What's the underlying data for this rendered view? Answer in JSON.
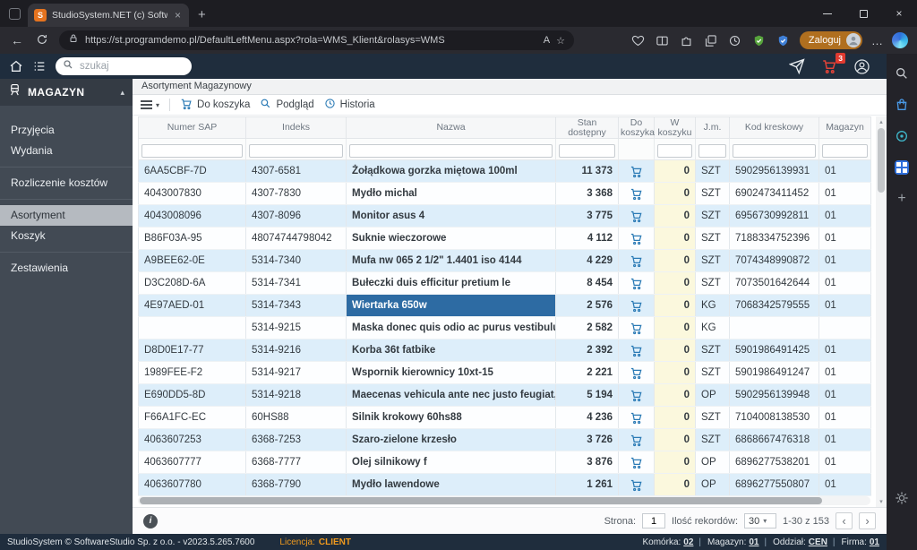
{
  "browser": {
    "tab_title": "StudioSystem.NET (c) SoftwareSt...",
    "favicon_letter": "S",
    "url": "https://st.programdemo.pl/DefaultLeftMenu.aspx?rola=WMS_Klient&rolasys=WMS",
    "login_label": "Zaloguj"
  },
  "topbar": {
    "search_placeholder": "szukaj",
    "cart_badge": "3"
  },
  "sidebar": {
    "title": "MAGAZYN",
    "items": [
      {
        "label": "Przyjęcia"
      },
      {
        "label": "Wydania"
      },
      {
        "label": "Rozliczenie kosztów"
      },
      {
        "label": "Asortyment"
      },
      {
        "label": "Koszyk"
      },
      {
        "label": "Zestawienia"
      }
    ]
  },
  "main": {
    "page_title": "Asortyment Magazynowy",
    "toolbar": {
      "do_koszyka_label": "Do koszyka",
      "podglad_label": "Podgląd",
      "historia_label": "Historia"
    },
    "table": {
      "columns": [
        "Numer SAP",
        "Indeks",
        "Nazwa",
        "Stan dostępny",
        "Do koszyka",
        "W koszyku",
        "J.m.",
        "Kod kreskowy",
        "Magazyn"
      ],
      "rows": [
        {
          "sap": "6AA5CBF-7D",
          "indeks": "4307-6581",
          "nazwa": "Żołądkowa gorzka miętowa 100ml",
          "stan": "11 373",
          "w_koszyku": "0",
          "jm": "SZT",
          "ean": "5902956139931",
          "magazyn": "01",
          "selected": false
        },
        {
          "sap": "4043007830",
          "indeks": "4307-7830",
          "nazwa": "Mydło michal",
          "stan": "3 368",
          "w_koszyku": "0",
          "jm": "SZT",
          "ean": "6902473411452",
          "magazyn": "01",
          "selected": false
        },
        {
          "sap": "4043008096",
          "indeks": "4307-8096",
          "nazwa": "Monitor asus 4",
          "stan": "3 775",
          "w_koszyku": "0",
          "jm": "SZT",
          "ean": "6956730992811",
          "magazyn": "01",
          "selected": false
        },
        {
          "sap": "B86F03A-95",
          "indeks": "48074744798042",
          "nazwa": "Suknie wieczorowe",
          "stan": "4 112",
          "w_koszyku": "0",
          "jm": "SZT",
          "ean": "7188334752396",
          "magazyn": "01",
          "selected": false
        },
        {
          "sap": "A9BEE62-0E",
          "indeks": "5314-7340",
          "nazwa": "Mufa nw 065 2 1/2\" 1.4401 iso 4144",
          "stan": "4 229",
          "w_koszyku": "0",
          "jm": "SZT",
          "ean": "7074348990872",
          "magazyn": "01",
          "selected": false
        },
        {
          "sap": "D3C208D-6A",
          "indeks": "5314-7341",
          "nazwa": "Bułeczki duis efficitur pretium le",
          "stan": "8 454",
          "w_koszyku": "0",
          "jm": "SZT",
          "ean": "7073501642644",
          "magazyn": "01",
          "selected": false
        },
        {
          "sap": "4E97AED-01",
          "indeks": "5314-7343",
          "nazwa": "Wiertarka 650w",
          "stan": "2 576",
          "w_koszyku": "0",
          "jm": "KG",
          "ean": "7068342579555",
          "magazyn": "01",
          "selected": true
        },
        {
          "sap": "",
          "indeks": "5314-9215",
          "nazwa": "Maska donec quis odio ac purus vestibulu...",
          "stan": "2 582",
          "w_koszyku": "0",
          "jm": "KG",
          "ean": "",
          "magazyn": "",
          "selected": false
        },
        {
          "sap": "D8D0E17-77",
          "indeks": "5314-9216",
          "nazwa": "Korba 36t fatbike",
          "stan": "2 392",
          "w_koszyku": "0",
          "jm": "SZT",
          "ean": "5901986491425",
          "magazyn": "01",
          "selected": false
        },
        {
          "sap": "1989FEE-F2",
          "indeks": "5314-9217",
          "nazwa": "Wspornik kierownicy 10xt-15",
          "stan": "2 221",
          "w_koszyku": "0",
          "jm": "SZT",
          "ean": "5901986491247",
          "magazyn": "01",
          "selected": false
        },
        {
          "sap": "E690DD5-8D",
          "indeks": "5314-9218",
          "nazwa": "Maecenas vehicula ante nec justo feugiat, ...",
          "stan": "5 194",
          "w_koszyku": "0",
          "jm": "OP",
          "ean": "5902956139948",
          "magazyn": "01",
          "selected": false
        },
        {
          "sap": "F66A1FC-EC",
          "indeks": "60HS88",
          "nazwa": "Silnik krokowy 60hs88",
          "stan": "4 236",
          "w_koszyku": "0",
          "jm": "SZT",
          "ean": "7104008138530",
          "magazyn": "01",
          "selected": false
        },
        {
          "sap": "4063607253",
          "indeks": "6368-7253",
          "nazwa": "Szaro-zielone krzesło",
          "stan": "3 726",
          "w_koszyku": "0",
          "jm": "SZT",
          "ean": "6868667476318",
          "magazyn": "01",
          "selected": false
        },
        {
          "sap": "4063607777",
          "indeks": "6368-7777",
          "nazwa": "Olej silnikowy f",
          "stan": "3 876",
          "w_koszyku": "0",
          "jm": "OP",
          "ean": "6896277538201",
          "magazyn": "01",
          "selected": false
        },
        {
          "sap": "4063607780",
          "indeks": "6368-7790",
          "nazwa": "Mydło lawendowe",
          "stan": "1 261",
          "w_koszyku": "0",
          "jm": "OP",
          "ean": "6896277550807",
          "magazyn": "01",
          "selected": false
        }
      ]
    },
    "footer": {
      "page_label": "Strona:",
      "page_value": "1",
      "records_label": "Ilość rekordów:",
      "records_value": "30",
      "range_text": "1-30 z 153"
    }
  },
  "statusbar": {
    "left_text": "StudioSystem © SoftwareStudio Sp. z o.o. - v2023.5.265.7600",
    "license_label": "Licencja:",
    "license_value": "CLIENT",
    "right": [
      {
        "label": "Komórka:",
        "value": "02"
      },
      {
        "label": "Magazyn:",
        "value": "01"
      },
      {
        "label": "Oddział:",
        "value": "CEN"
      },
      {
        "label": "Firma:",
        "value": "01"
      }
    ]
  },
  "icons": {
    "tab_close": "×",
    "new_tab": "+",
    "window_close": "×",
    "back": "←",
    "star": "☆",
    "read_aloud": "A",
    "ellipsis": "…",
    "menu_caret": "▾",
    "select_caret": "▾",
    "prev": "‹",
    "next": "›",
    "info": "i",
    "collapse": "▴",
    "scroll_up": "▴",
    "scroll_down": "▾",
    "plus": "+"
  },
  "colors": {
    "accent_orange": "#f09a1e",
    "selected_cell": "#2d6ba3",
    "row_alt": "#ddeefa",
    "koszyk_column": "#fbf8dd",
    "topbar_navy": "#1f2d3d"
  }
}
